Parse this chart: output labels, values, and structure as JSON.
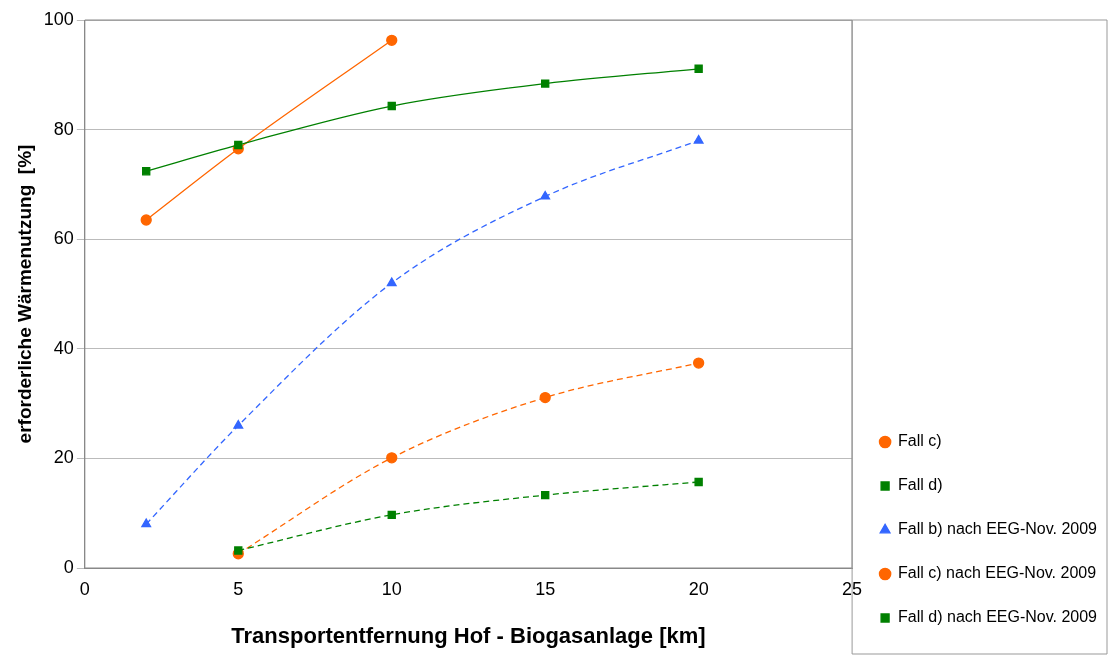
{
  "chart_data": {
    "type": "line",
    "xlabel": "Transportentfernung Hof - Biogasanlage [km]",
    "ylabel": "erforderliche Wärmenutzung  [%]",
    "xlim": [
      0,
      25
    ],
    "xticks": [
      0,
      5,
      10,
      15,
      20,
      25
    ],
    "ylim": [
      0,
      100
    ],
    "yticks": [
      0,
      20,
      40,
      60,
      80,
      100
    ],
    "grid": "y",
    "legend": "bottom right",
    "series": [
      {
        "name": "Fall c)",
        "color": "#ff6600",
        "x": [
          2,
          5,
          10
        ],
        "values": [
          63.5,
          76.5,
          96.3
        ],
        "marker": "circle",
        "line_style": "solid"
      },
      {
        "name": "Fall d)",
        "color": "#008000",
        "x": [
          2,
          5,
          10,
          15,
          20
        ],
        "values": [
          72.4,
          77.2,
          84.3,
          88.4,
          91.1
        ],
        "marker": "square",
        "line_style": "solid"
      },
      {
        "name": "Fall b) nach EEG-Nov. 2009",
        "color": "#3366ff",
        "x": [
          2,
          5,
          10,
          15,
          20
        ],
        "values": [
          8,
          26,
          52,
          67.8,
          78
        ],
        "marker": "triangle",
        "line_style": "dashed"
      },
      {
        "name": "Fall c) nach EEG-Nov. 2009",
        "color": "#ff6600",
        "x": [
          5,
          10,
          15,
          20
        ],
        "values": [
          2.6,
          20.1,
          31.1,
          37.4
        ],
        "marker": "circle",
        "line_style": "dashed"
      },
      {
        "name": "Fall d) nach EEG-Nov. 2009",
        "color": "#008000",
        "x": [
          5,
          10,
          15,
          20
        ],
        "values": [
          3.2,
          9.7,
          13.3,
          15.7
        ],
        "marker": "square",
        "line_style": "dashed"
      }
    ]
  }
}
